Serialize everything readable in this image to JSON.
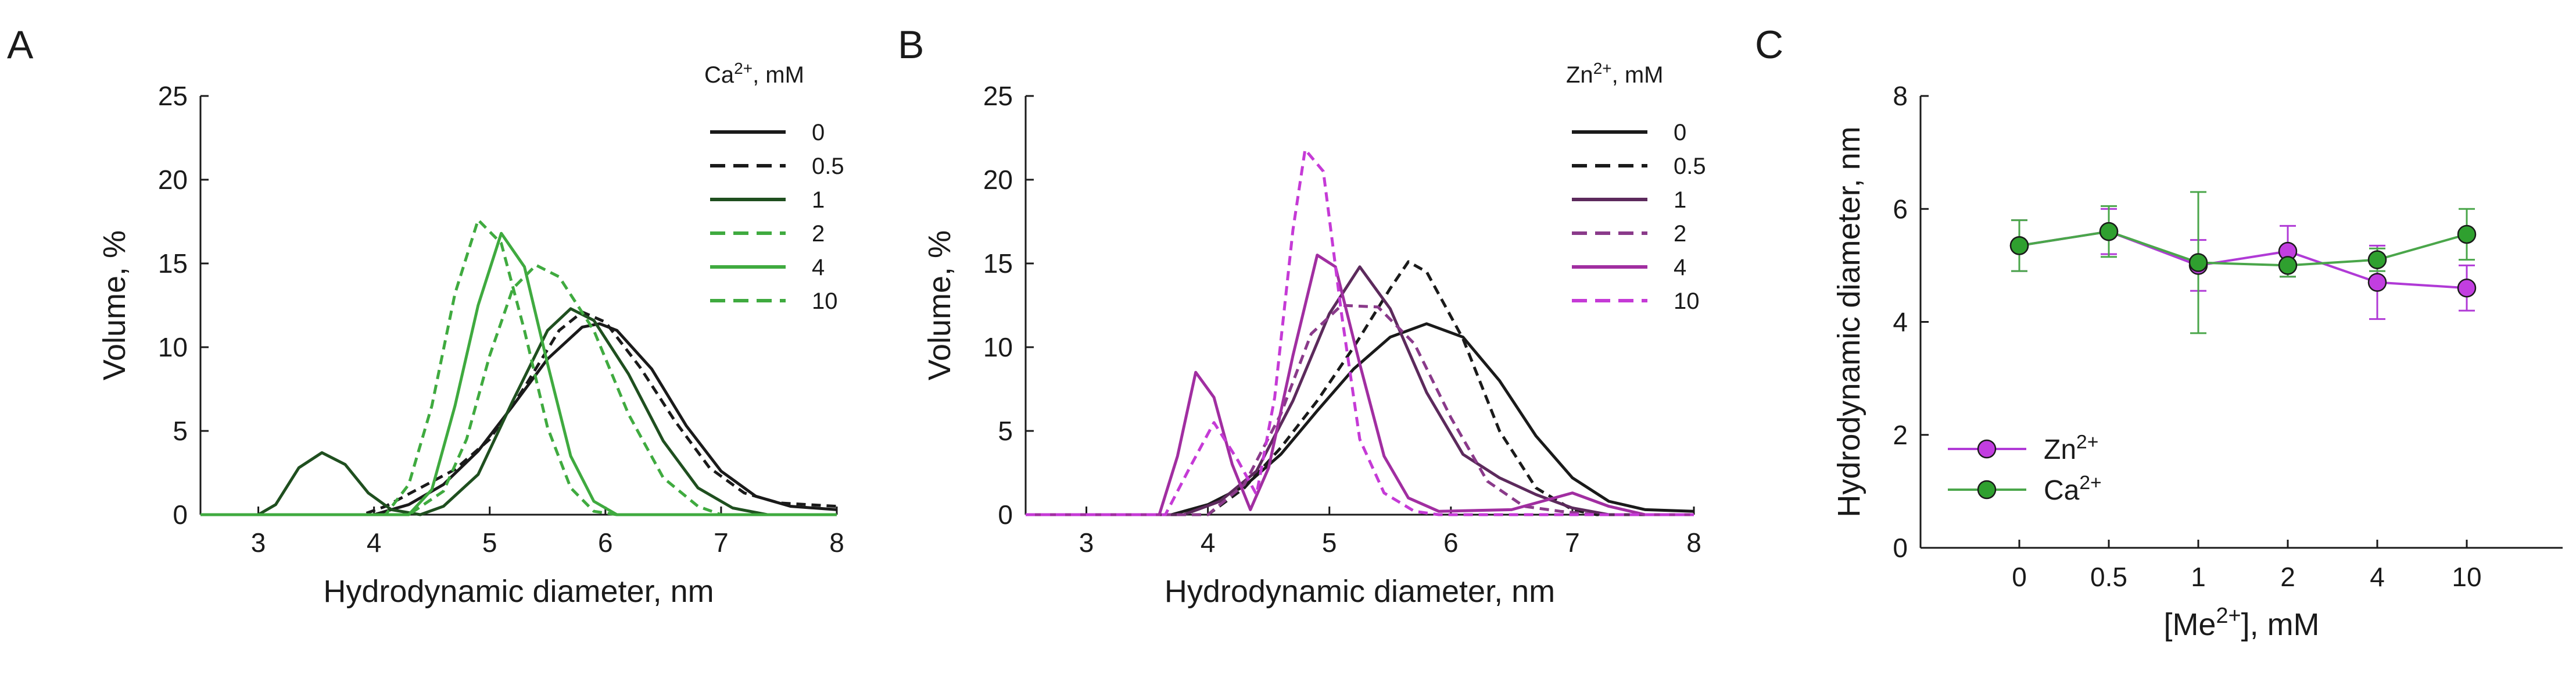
{
  "chart_data": [
    {
      "panel": "A",
      "type": "line",
      "xlabel": "Hydrodynamic diameter, nm",
      "ylabel": "Volume, %",
      "xlim": [
        2.5,
        8
      ],
      "ylim": [
        0,
        25
      ],
      "xticks": [
        3,
        4,
        5,
        6,
        7,
        8
      ],
      "yticks": [
        0,
        5,
        10,
        15,
        20,
        25
      ],
      "legend_title": "Ca",
      "legend_title_sup": "2+",
      "legend_title_suffix": ", mM",
      "series": [
        {
          "name": "0",
          "color": "#1a1a1a",
          "dash": "solid",
          "width": 5,
          "points": [
            [
              2.5,
              0
            ],
            [
              4.0,
              0
            ],
            [
              4.3,
              0.6
            ],
            [
              4.6,
              1.8
            ],
            [
              4.9,
              3.8
            ],
            [
              5.2,
              6.5
            ],
            [
              5.5,
              9.3
            ],
            [
              5.8,
              11.2
            ],
            [
              5.95,
              11.4
            ],
            [
              6.1,
              11.0
            ],
            [
              6.4,
              8.7
            ],
            [
              6.7,
              5.3
            ],
            [
              7.0,
              2.6
            ],
            [
              7.3,
              1.1
            ],
            [
              7.6,
              0.5
            ],
            [
              8.0,
              0.3
            ]
          ]
        },
        {
          "name": "0.5",
          "color": "#1a1a1a",
          "dash": "16,10",
          "width": 5,
          "points": [
            [
              2.5,
              0
            ],
            [
              3.9,
              0
            ],
            [
              4.1,
              0.5
            ],
            [
              4.4,
              1.6
            ],
            [
              4.7,
              2.7
            ],
            [
              5.0,
              4.5
            ],
            [
              5.3,
              7.6
            ],
            [
              5.6,
              11.0
            ],
            [
              5.8,
              12.1
            ],
            [
              6.0,
              11.5
            ],
            [
              6.3,
              8.8
            ],
            [
              6.6,
              5.6
            ],
            [
              6.9,
              2.8
            ],
            [
              7.2,
              1.3
            ],
            [
              7.5,
              0.7
            ],
            [
              8.0,
              0.5
            ]
          ]
        },
        {
          "name": "1",
          "color": "#1f4f1f",
          "dash": "solid",
          "width": 5,
          "points": [
            [
              2.5,
              0
            ],
            [
              3.0,
              0
            ],
            [
              3.15,
              0.6
            ],
            [
              3.35,
              2.8
            ],
            [
              3.55,
              3.7
            ],
            [
              3.75,
              3.0
            ],
            [
              3.95,
              1.3
            ],
            [
              4.15,
              0.3
            ],
            [
              4.4,
              0
            ],
            [
              4.6,
              0.5
            ],
            [
              4.9,
              2.4
            ],
            [
              5.2,
              6.8
            ],
            [
              5.5,
              11.0
            ],
            [
              5.7,
              12.3
            ],
            [
              5.9,
              11.6
            ],
            [
              6.2,
              8.4
            ],
            [
              6.5,
              4.4
            ],
            [
              6.8,
              1.6
            ],
            [
              7.1,
              0.4
            ],
            [
              7.4,
              0
            ],
            [
              8.0,
              0
            ]
          ]
        },
        {
          "name": "2",
          "color": "#3faa3f",
          "dash": "16,10",
          "width": 5,
          "points": [
            [
              2.5,
              0
            ],
            [
              4.1,
              0
            ],
            [
              4.3,
              1.8
            ],
            [
              4.5,
              6.5
            ],
            [
              4.7,
              13.2
            ],
            [
              4.9,
              17.6
            ],
            [
              5.1,
              16.2
            ],
            [
              5.3,
              11.0
            ],
            [
              5.5,
              5.2
            ],
            [
              5.7,
              1.6
            ],
            [
              5.9,
              0.2
            ],
            [
              6.1,
              0
            ],
            [
              8.0,
              0
            ]
          ]
        },
        {
          "name": "4",
          "color": "#3faa3f",
          "dash": "solid",
          "width": 5,
          "points": [
            [
              2.5,
              0
            ],
            [
              4.3,
              0
            ],
            [
              4.5,
              1.5
            ],
            [
              4.7,
              6.5
            ],
            [
              4.9,
              12.5
            ],
            [
              5.1,
              16.8
            ],
            [
              5.3,
              14.8
            ],
            [
              5.5,
              9.0
            ],
            [
              5.7,
              3.5
            ],
            [
              5.9,
              0.8
            ],
            [
              6.1,
              0
            ],
            [
              8.0,
              0
            ]
          ]
        },
        {
          "name": "10",
          "color": "#3faa3f",
          "dash": "16,10",
          "width": 5,
          "points": [
            [
              2.5,
              0
            ],
            [
              4.3,
              0
            ],
            [
              4.6,
              1.4
            ],
            [
              4.8,
              4.5
            ],
            [
              5.0,
              9.5
            ],
            [
              5.2,
              13.5
            ],
            [
              5.4,
              14.9
            ],
            [
              5.6,
              14.2
            ],
            [
              5.9,
              11.0
            ],
            [
              6.2,
              6.0
            ],
            [
              6.5,
              2.2
            ],
            [
              6.8,
              0.5
            ],
            [
              7.0,
              0
            ],
            [
              8.0,
              0
            ]
          ]
        }
      ]
    },
    {
      "panel": "B",
      "type": "line",
      "xlabel": "Hydrodynamic diameter, nm",
      "ylabel": "Volume, %",
      "xlim": [
        2.5,
        8
      ],
      "ylim": [
        0,
        25
      ],
      "xticks": [
        3,
        4,
        5,
        6,
        7,
        8
      ],
      "yticks": [
        0,
        5,
        10,
        15,
        20,
        25
      ],
      "legend_title": "Zn",
      "legend_title_sup": "2+",
      "legend_title_suffix": ", mM",
      "series": [
        {
          "name": "0",
          "color": "#1a1a1a",
          "dash": "solid",
          "width": 5,
          "points": [
            [
              2.5,
              0
            ],
            [
              3.7,
              0
            ],
            [
              4.0,
              0.6
            ],
            [
              4.3,
              1.7
            ],
            [
              4.6,
              3.6
            ],
            [
              4.9,
              6.2
            ],
            [
              5.2,
              8.7
            ],
            [
              5.5,
              10.6
            ],
            [
              5.8,
              11.4
            ],
            [
              6.1,
              10.6
            ],
            [
              6.4,
              8.0
            ],
            [
              6.7,
              4.7
            ],
            [
              7.0,
              2.2
            ],
            [
              7.3,
              0.8
            ],
            [
              7.6,
              0.3
            ],
            [
              8.0,
              0.2
            ]
          ]
        },
        {
          "name": "0.5",
          "color": "#1a1a1a",
          "dash": "16,10",
          "width": 5,
          "points": [
            [
              2.5,
              0
            ],
            [
              4.0,
              0
            ],
            [
              4.3,
              1.6
            ],
            [
              4.6,
              4.0
            ],
            [
              4.9,
              6.8
            ],
            [
              5.2,
              10.0
            ],
            [
              5.5,
              13.5
            ],
            [
              5.65,
              15.1
            ],
            [
              5.8,
              14.5
            ],
            [
              6.1,
              10.5
            ],
            [
              6.4,
              5.0
            ],
            [
              6.7,
              1.6
            ],
            [
              7.0,
              0.3
            ],
            [
              7.2,
              0
            ],
            [
              8.0,
              0
            ]
          ]
        },
        {
          "name": "1",
          "color": "#5c2a5c",
          "dash": "solid",
          "width": 5,
          "points": [
            [
              2.5,
              0
            ],
            [
              3.8,
              0
            ],
            [
              4.1,
              0.8
            ],
            [
              4.4,
              2.6
            ],
            [
              4.7,
              6.8
            ],
            [
              5.0,
              12.0
            ],
            [
              5.25,
              14.8
            ],
            [
              5.5,
              12.3
            ],
            [
              5.8,
              7.3
            ],
            [
              6.1,
              3.6
            ],
            [
              6.4,
              2.2
            ],
            [
              6.7,
              1.2
            ],
            [
              7.0,
              0.4
            ],
            [
              7.3,
              0
            ],
            [
              8.0,
              0
            ]
          ]
        },
        {
          "name": "2",
          "color": "#8a3a8a",
          "dash": "16,10",
          "width": 5,
          "points": [
            [
              2.5,
              0
            ],
            [
              4.0,
              0
            ],
            [
              4.3,
              1.8
            ],
            [
              4.6,
              6.0
            ],
            [
              4.85,
              10.8
            ],
            [
              5.1,
              12.5
            ],
            [
              5.4,
              12.4
            ],
            [
              5.7,
              10.2
            ],
            [
              6.0,
              5.8
            ],
            [
              6.3,
              2.0
            ],
            [
              6.6,
              0.5
            ],
            [
              6.9,
              0.2
            ],
            [
              7.2,
              0
            ],
            [
              8.0,
              0
            ]
          ]
        },
        {
          "name": "4",
          "color": "#a12ea1",
          "dash": "solid",
          "width": 5,
          "points": [
            [
              2.5,
              0
            ],
            [
              3.6,
              0
            ],
            [
              3.75,
              3.5
            ],
            [
              3.9,
              8.5
            ],
            [
              4.05,
              7.0
            ],
            [
              4.2,
              3.0
            ],
            [
              4.35,
              0.3
            ],
            [
              4.5,
              2.8
            ],
            [
              4.7,
              9.5
            ],
            [
              4.9,
              15.5
            ],
            [
              5.05,
              14.8
            ],
            [
              5.25,
              9.0
            ],
            [
              5.45,
              3.5
            ],
            [
              5.65,
              1.0
            ],
            [
              5.9,
              0.2
            ],
            [
              6.5,
              0.3
            ],
            [
              6.8,
              0.9
            ],
            [
              7.0,
              1.3
            ],
            [
              7.3,
              0.5
            ],
            [
              7.6,
              0
            ],
            [
              8.0,
              0
            ]
          ]
        },
        {
          "name": "10",
          "color": "#c53ad6",
          "dash": "16,10",
          "width": 5,
          "points": [
            [
              2.5,
              0
            ],
            [
              3.65,
              0
            ],
            [
              3.85,
              2.8
            ],
            [
              4.05,
              5.5
            ],
            [
              4.25,
              3.2
            ],
            [
              4.4,
              1.2
            ],
            [
              4.55,
              7.0
            ],
            [
              4.7,
              17.0
            ],
            [
              4.8,
              21.8
            ],
            [
              4.95,
              20.5
            ],
            [
              5.1,
              12.0
            ],
            [
              5.25,
              4.5
            ],
            [
              5.45,
              1.3
            ],
            [
              5.7,
              0.2
            ],
            [
              5.9,
              0
            ],
            [
              8.0,
              0
            ]
          ]
        }
      ]
    },
    {
      "panel": "C",
      "type": "line",
      "xlabel_prefix": "[Me",
      "xlabel_sup": "2+",
      "xlabel_suffix": "], mM",
      "ylabel": "Hydrodynamic diameter, nm",
      "ylim": [
        0,
        8
      ],
      "yticks": [
        0,
        2,
        4,
        6,
        8
      ],
      "categories": [
        "0",
        "0.5",
        "1",
        "2",
        "4",
        "10"
      ],
      "series": [
        {
          "name": "Zn",
          "name_sup": "2+",
          "color": "#b03ad6",
          "marker_fill": "#c23ee0",
          "values": [
            5.35,
            5.6,
            5.0,
            5.25,
            4.7,
            4.6
          ],
          "errors": [
            0.45,
            0.4,
            0.45,
            0.45,
            0.65,
            0.4
          ]
        },
        {
          "name": "Ca",
          "name_sup": "2+",
          "color": "#4aa64a",
          "marker_fill": "#2fa02f",
          "values": [
            5.35,
            5.6,
            5.05,
            5.0,
            5.1,
            5.55
          ],
          "errors": [
            0.45,
            0.45,
            1.25,
            0.2,
            0.2,
            0.45
          ]
        }
      ]
    }
  ],
  "panel_letters": {
    "a": "A",
    "b": "B",
    "c": "C"
  }
}
